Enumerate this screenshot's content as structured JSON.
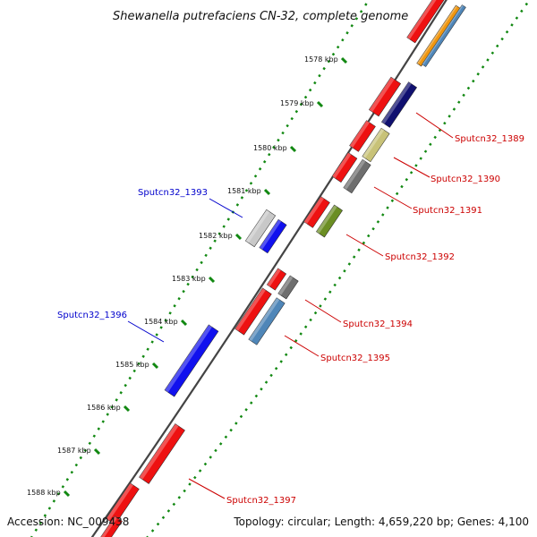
{
  "title": "Shewanella putrefaciens CN-32, complete genome",
  "footer": {
    "accession": "Accession: NC_009438",
    "summary": "Topology: circular; Length: 4,659,220 bp; Genes: 4,100"
  },
  "ticks": [
    "1578 kbp",
    "1579 kbp",
    "1580 kbp",
    "1581 kbp",
    "1582 kbp",
    "1583 kbp",
    "1584 kbp",
    "1585 kbp",
    "1586 kbp",
    "1587 kbp",
    "1588 kbp"
  ],
  "genes": [
    {
      "name": "Sputcn32_1389",
      "strand": "forward",
      "color": "#cc0000"
    },
    {
      "name": "Sputcn32_1390",
      "strand": "forward",
      "color": "#cc0000"
    },
    {
      "name": "Sputcn32_1391",
      "strand": "forward",
      "color": "#cc0000"
    },
    {
      "name": "Sputcn32_1392",
      "strand": "forward",
      "color": "#cc0000"
    },
    {
      "name": "Sputcn32_1393",
      "strand": "reverse",
      "color": "#0000cc"
    },
    {
      "name": "Sputcn32_1394",
      "strand": "forward",
      "color": "#cc0000"
    },
    {
      "name": "Sputcn32_1395",
      "strand": "forward",
      "color": "#cc0000"
    },
    {
      "name": "Sputcn32_1396",
      "strand": "reverse",
      "color": "#0000cc"
    },
    {
      "name": "Sputcn32_1397",
      "strand": "forward",
      "color": "#cc0000"
    }
  ],
  "feature_colors": {
    "red": "#ee1111",
    "blue": "#1111ee",
    "navy": "#101070",
    "khaki": "#c8c278",
    "gray": "#6e6e6e",
    "olive": "#6b8e23",
    "light_gray": "#c8c8c8",
    "steel_blue": "#4f86b8",
    "orange": "#f0960f"
  }
}
